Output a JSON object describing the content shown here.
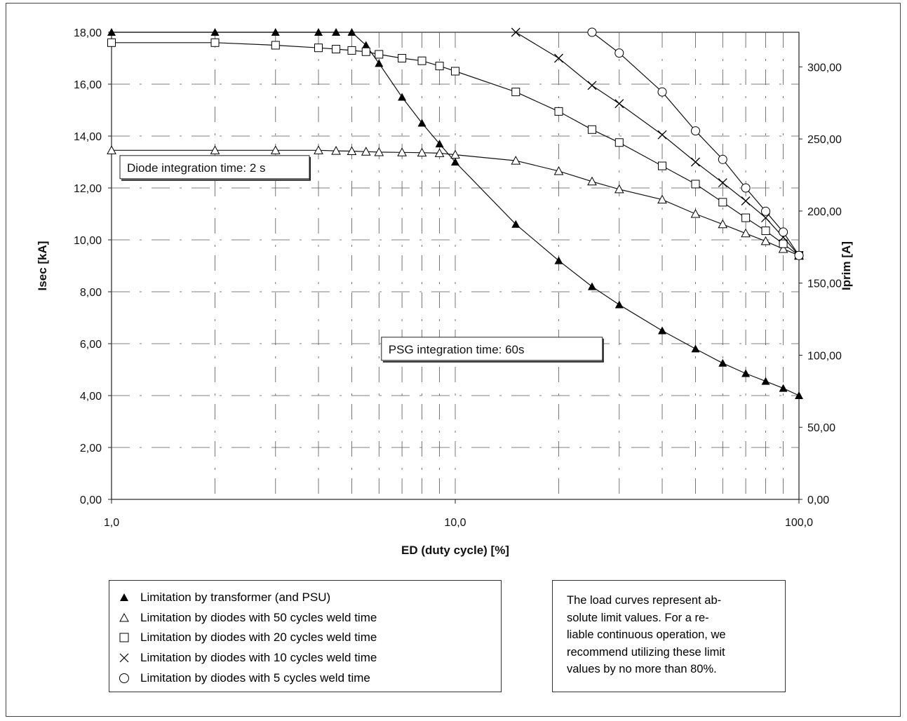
{
  "chart_data": {
    "type": "line",
    "x_scale": "log",
    "xlim": [
      1.0,
      100.0
    ],
    "ylim": [
      0,
      18
    ],
    "y2lim": [
      0,
      324
    ],
    "xlabel": "ED (duty cycle) [%]",
    "ylabel": "Isec [kA]",
    "y2label": "Iprim [A]",
    "x_ticks": [
      "1,0",
      "10,0",
      "100,0"
    ],
    "y_ticks": [
      "0,00",
      "2,00",
      "4,00",
      "6,00",
      "8,00",
      "10,00",
      "12,00",
      "14,00",
      "16,00",
      "18,00"
    ],
    "y2_ticks": [
      "0,00",
      "50,00",
      "100,00",
      "150,00",
      "200,00",
      "250,00",
      "300,00"
    ],
    "y2_tick_values": [
      0,
      50,
      100,
      150,
      200,
      250,
      300
    ],
    "grid": true,
    "legend_position": "bottom-left",
    "series": [
      {
        "name": "Limitation by transformer (and PSU)",
        "marker": "filled-triangle",
        "x": [
          1,
          2,
          3,
          4,
          4.5,
          5,
          5.5,
          6,
          7,
          8,
          9,
          10,
          15,
          20,
          25,
          30,
          40,
          50,
          60,
          70,
          80,
          90,
          100
        ],
        "y": [
          18,
          18,
          18,
          18,
          18,
          18,
          17.5,
          16.8,
          15.5,
          14.5,
          13.7,
          13.0,
          10.6,
          9.2,
          8.2,
          7.5,
          6.5,
          5.8,
          5.25,
          4.85,
          4.55,
          4.28,
          4.0
        ]
      },
      {
        "name": "Limitation by diodes with 50 cycles weld time",
        "marker": "triangle",
        "x": [
          1,
          2,
          3,
          4,
          4.5,
          5,
          5.5,
          6,
          7,
          8,
          9,
          10,
          15,
          20,
          25,
          30,
          40,
          50,
          60,
          70,
          80,
          90,
          100
        ],
        "y": [
          13.45,
          13.45,
          13.45,
          13.45,
          13.43,
          13.42,
          13.4,
          13.38,
          13.37,
          13.36,
          13.34,
          13.28,
          13.05,
          12.65,
          12.25,
          11.95,
          11.55,
          11.0,
          10.6,
          10.25,
          9.95,
          9.65,
          9.4
        ]
      },
      {
        "name": "Limitation by diodes with 20 cycles weld time",
        "marker": "square",
        "x": [
          1,
          2,
          3,
          4,
          4.5,
          5,
          5.5,
          6,
          7,
          8,
          9,
          10,
          15,
          20,
          25,
          30,
          40,
          50,
          60,
          70,
          80,
          90,
          100
        ],
        "y": [
          17.6,
          17.6,
          17.5,
          17.4,
          17.35,
          17.3,
          17.25,
          17.15,
          17.0,
          16.9,
          16.7,
          16.5,
          15.7,
          14.95,
          14.25,
          13.75,
          12.85,
          12.15,
          11.45,
          10.85,
          10.35,
          9.85,
          9.4
        ]
      },
      {
        "name": "Limitation by diodes with 10 cycles weld time",
        "marker": "cross",
        "x": [
          15,
          20,
          25,
          30,
          40,
          50,
          60,
          70,
          80,
          90,
          100
        ],
        "y": [
          18,
          17.0,
          15.95,
          15.25,
          14.05,
          13.0,
          12.2,
          11.5,
          10.85,
          10.1,
          9.4
        ]
      },
      {
        "name": "Limitation by diodes with 5 cycles weld time",
        "marker": "circle",
        "x": [
          25,
          30,
          40,
          50,
          60,
          70,
          80,
          90,
          100
        ],
        "y": [
          18,
          17.2,
          15.7,
          14.2,
          13.1,
          12.0,
          11.1,
          10.3,
          9.4
        ]
      }
    ],
    "annotations": [
      {
        "text": "Diode integration time: 2 s",
        "x": 1.0,
        "y": 12.6
      },
      {
        "text": "PSG integration time: 60s",
        "x": 6.1,
        "y": 5.6
      }
    ]
  },
  "note": {
    "lines": [
      "The load curves represent ab-",
      "solute limit values. For a re-",
      "liable continuous operation, we",
      "recommend utilizing these limit",
      "values by no more than 80%."
    ]
  }
}
